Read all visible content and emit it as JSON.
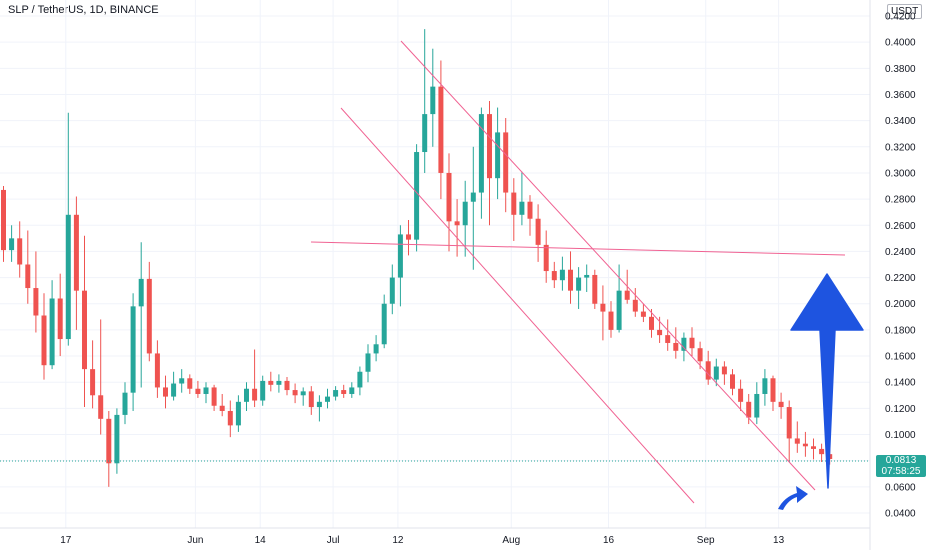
{
  "header": {
    "title": "SLP / TetherUS, 1D, BINANCE",
    "currency": "USDT"
  },
  "price_badge": {
    "price": "0.0813",
    "countdown": "07:58:25",
    "color": "#26a69a"
  },
  "colors": {
    "up": "#26a69a",
    "down": "#ef5350",
    "trendline": "#f06292",
    "arrow": "#1e54e0"
  },
  "icons": [
    "big-up-arrow-icon",
    "curved-arrow-icon"
  ],
  "chart_data": {
    "type": "candlestick",
    "y_axis": {
      "ticks": [
        "0.4200",
        "0.4000",
        "0.3800",
        "0.3600",
        "0.3400",
        "0.3200",
        "0.3000",
        "0.2800",
        "0.2600",
        "0.2400",
        "0.2200",
        "0.2000",
        "0.1800",
        "0.1600",
        "0.1400",
        "0.1200",
        "0.1000",
        "0.0800",
        "0.0600",
        "0.0400"
      ],
      "tick_values": [
        0.42,
        0.4,
        0.38,
        0.36,
        0.34,
        0.32,
        0.3,
        0.28,
        0.26,
        0.24,
        0.22,
        0.2,
        0.18,
        0.16,
        0.14,
        0.12,
        0.1,
        0.08,
        0.06,
        0.04
      ],
      "range": [
        0.0295,
        0.4305
      ]
    },
    "x_axis": {
      "labels": [
        "17",
        "Jun",
        "14",
        "Jul",
        "12",
        "Aug",
        "16",
        "Sep",
        "13"
      ],
      "label_bar_index": [
        8,
        24,
        32,
        41,
        49,
        63,
        75,
        87,
        96
      ]
    },
    "current_price": 0.0813,
    "candles": [
      [
        0.287,
        0.29,
        0.232,
        0.241
      ],
      [
        0.241,
        0.26,
        0.232,
        0.25
      ],
      [
        0.25,
        0.263,
        0.22,
        0.23
      ],
      [
        0.23,
        0.256,
        0.2,
        0.212
      ],
      [
        0.212,
        0.24,
        0.178,
        0.191
      ],
      [
        0.191,
        0.208,
        0.142,
        0.153
      ],
      [
        0.153,
        0.218,
        0.15,
        0.204
      ],
      [
        0.204,
        0.223,
        0.16,
        0.173
      ],
      [
        0.173,
        0.346,
        0.168,
        0.268
      ],
      [
        0.268,
        0.282,
        0.18,
        0.21
      ],
      [
        0.21,
        0.252,
        0.121,
        0.15
      ],
      [
        0.15,
        0.172,
        0.12,
        0.13
      ],
      [
        0.13,
        0.188,
        0.1,
        0.112
      ],
      [
        0.112,
        0.118,
        0.06,
        0.078
      ],
      [
        0.078,
        0.12,
        0.07,
        0.115
      ],
      [
        0.115,
        0.14,
        0.108,
        0.132
      ],
      [
        0.132,
        0.208,
        0.118,
        0.198
      ],
      [
        0.198,
        0.247,
        0.136,
        0.219
      ],
      [
        0.219,
        0.232,
        0.156,
        0.162
      ],
      [
        0.162,
        0.172,
        0.128,
        0.136
      ],
      [
        0.136,
        0.145,
        0.12,
        0.129
      ],
      [
        0.129,
        0.148,
        0.126,
        0.139
      ],
      [
        0.139,
        0.15,
        0.132,
        0.143
      ],
      [
        0.143,
        0.146,
        0.131,
        0.135
      ],
      [
        0.135,
        0.141,
        0.128,
        0.131
      ],
      [
        0.131,
        0.14,
        0.124,
        0.136
      ],
      [
        0.136,
        0.138,
        0.118,
        0.122
      ],
      [
        0.122,
        0.131,
        0.114,
        0.118
      ],
      [
        0.118,
        0.126,
        0.098,
        0.107
      ],
      [
        0.107,
        0.13,
        0.102,
        0.125
      ],
      [
        0.125,
        0.14,
        0.118,
        0.135
      ],
      [
        0.135,
        0.165,
        0.121,
        0.126
      ],
      [
        0.126,
        0.145,
        0.122,
        0.141
      ],
      [
        0.141,
        0.148,
        0.133,
        0.138
      ],
      [
        0.138,
        0.146,
        0.132,
        0.141
      ],
      [
        0.141,
        0.144,
        0.13,
        0.134
      ],
      [
        0.134,
        0.139,
        0.124,
        0.13
      ],
      [
        0.13,
        0.136,
        0.122,
        0.133
      ],
      [
        0.133,
        0.137,
        0.115,
        0.121
      ],
      [
        0.121,
        0.13,
        0.11,
        0.125
      ],
      [
        0.125,
        0.135,
        0.12,
        0.129
      ],
      [
        0.129,
        0.137,
        0.126,
        0.134
      ],
      [
        0.134,
        0.138,
        0.128,
        0.131
      ],
      [
        0.131,
        0.14,
        0.128,
        0.136
      ],
      [
        0.136,
        0.152,
        0.13,
        0.148
      ],
      [
        0.148,
        0.169,
        0.14,
        0.162
      ],
      [
        0.162,
        0.176,
        0.156,
        0.169
      ],
      [
        0.169,
        0.207,
        0.166,
        0.2
      ],
      [
        0.2,
        0.23,
        0.192,
        0.22
      ],
      [
        0.22,
        0.26,
        0.198,
        0.253
      ],
      [
        0.253,
        0.264,
        0.237,
        0.249
      ],
      [
        0.249,
        0.322,
        0.24,
        0.316
      ],
      [
        0.316,
        0.41,
        0.3,
        0.345
      ],
      [
        0.345,
        0.395,
        0.32,
        0.366
      ],
      [
        0.366,
        0.386,
        0.28,
        0.3
      ],
      [
        0.3,
        0.315,
        0.24,
        0.263
      ],
      [
        0.263,
        0.28,
        0.236,
        0.26
      ],
      [
        0.26,
        0.294,
        0.236,
        0.278
      ],
      [
        0.278,
        0.32,
        0.226,
        0.285
      ],
      [
        0.285,
        0.35,
        0.265,
        0.345
      ],
      [
        0.345,
        0.355,
        0.26,
        0.296
      ],
      [
        0.296,
        0.35,
        0.28,
        0.331
      ],
      [
        0.331,
        0.342,
        0.27,
        0.285
      ],
      [
        0.285,
        0.296,
        0.248,
        0.268
      ],
      [
        0.268,
        0.301,
        0.26,
        0.278
      ],
      [
        0.278,
        0.283,
        0.252,
        0.265
      ],
      [
        0.265,
        0.276,
        0.232,
        0.245
      ],
      [
        0.245,
        0.256,
        0.216,
        0.225
      ],
      [
        0.225,
        0.232,
        0.212,
        0.218
      ],
      [
        0.218,
        0.236,
        0.21,
        0.226
      ],
      [
        0.226,
        0.24,
        0.2,
        0.21
      ],
      [
        0.21,
        0.228,
        0.196,
        0.22
      ],
      [
        0.22,
        0.23,
        0.209,
        0.222
      ],
      [
        0.222,
        0.226,
        0.196,
        0.2
      ],
      [
        0.2,
        0.214,
        0.172,
        0.194
      ],
      [
        0.194,
        0.202,
        0.174,
        0.18
      ],
      [
        0.18,
        0.23,
        0.178,
        0.21
      ],
      [
        0.21,
        0.226,
        0.2,
        0.203
      ],
      [
        0.203,
        0.212,
        0.19,
        0.194
      ],
      [
        0.194,
        0.2,
        0.186,
        0.19
      ],
      [
        0.19,
        0.196,
        0.174,
        0.18
      ],
      [
        0.18,
        0.19,
        0.17,
        0.176
      ],
      [
        0.176,
        0.188,
        0.164,
        0.17
      ],
      [
        0.17,
        0.182,
        0.158,
        0.164
      ],
      [
        0.164,
        0.178,
        0.156,
        0.174
      ],
      [
        0.174,
        0.182,
        0.16,
        0.166
      ],
      [
        0.166,
        0.171,
        0.15,
        0.156
      ],
      [
        0.156,
        0.164,
        0.138,
        0.142
      ],
      [
        0.142,
        0.158,
        0.137,
        0.152
      ],
      [
        0.152,
        0.156,
        0.138,
        0.146
      ],
      [
        0.146,
        0.15,
        0.13,
        0.135
      ],
      [
        0.135,
        0.142,
        0.118,
        0.125
      ],
      [
        0.125,
        0.131,
        0.108,
        0.113
      ],
      [
        0.113,
        0.14,
        0.108,
        0.131
      ],
      [
        0.131,
        0.15,
        0.122,
        0.143
      ],
      [
        0.143,
        0.145,
        0.118,
        0.125
      ],
      [
        0.125,
        0.132,
        0.112,
        0.121
      ],
      [
        0.121,
        0.126,
        0.079,
        0.097
      ],
      [
        0.097,
        0.11,
        0.086,
        0.093
      ],
      [
        0.093,
        0.102,
        0.083,
        0.091
      ],
      [
        0.091,
        0.097,
        0.081,
        0.089
      ],
      [
        0.089,
        0.093,
        0.079,
        0.085
      ],
      [
        0.085,
        0.091,
        0.077,
        0.0813
      ]
    ]
  }
}
